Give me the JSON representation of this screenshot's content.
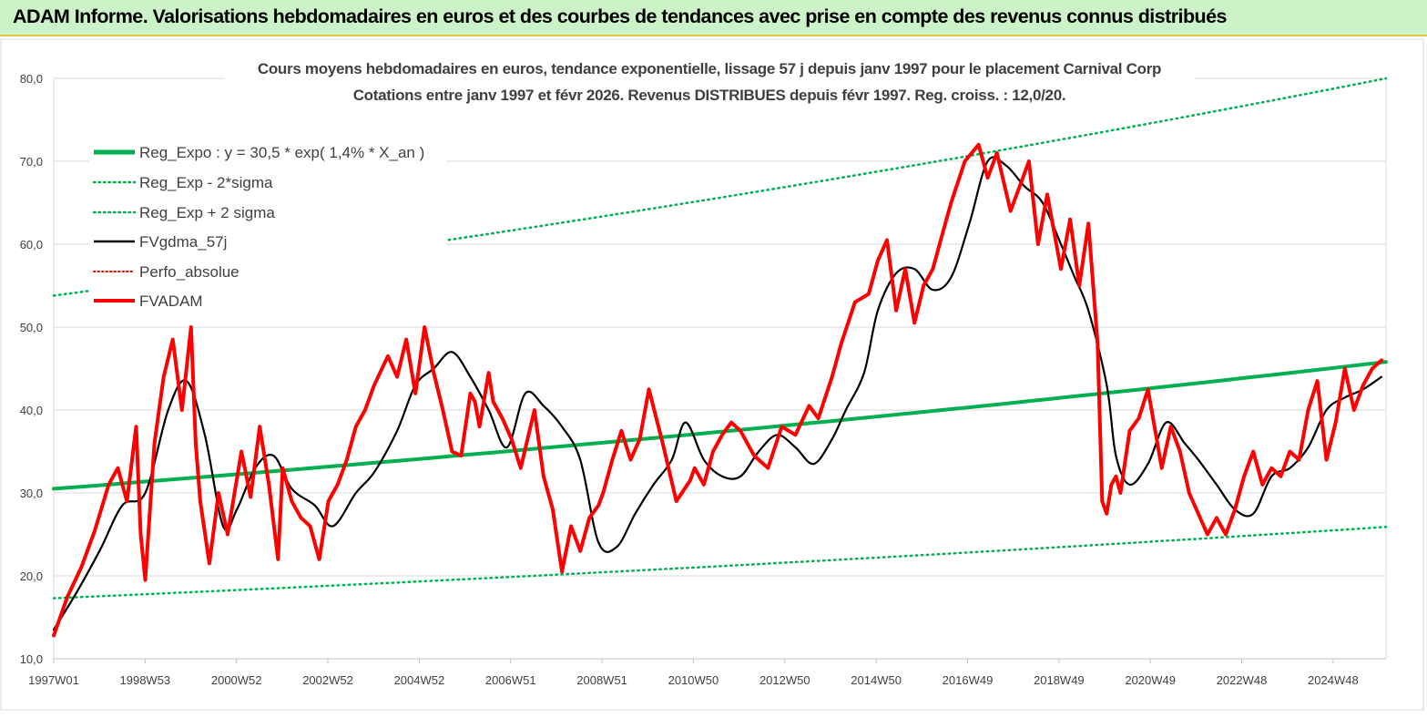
{
  "banner": {
    "title": "ADAM Informe. Valorisations hebdomadaires en euros et des courbes de tendances avec prise en compte des revenus connus distribués"
  },
  "colors": {
    "banner_bg": "#ccf2c8",
    "banner_border": "#e8c33a",
    "reg_expo": "#00b050",
    "fvgdma": "#000000",
    "fvadam": "#ff0000",
    "perfo": "#ff0000"
  },
  "chart_data": {
    "type": "line",
    "title": [
      "Cours moyens hebdomadaires en euros, tendance exponentielle, lissage 57 j depuis janv 1997 pour le placement Carnival Corp",
      "Cotations entre janv 1997 et févr 2026. Revenus DISTRIBUES depuis févr 1997. Reg. croiss. : 12,0/20."
    ],
    "xlabel": "",
    "ylabel": "",
    "ylim": [
      10,
      80
    ],
    "xlim": [
      1997.0,
      2026.1
    ],
    "yticks": [
      "10,0",
      "20,0",
      "30,0",
      "40,0",
      "50,0",
      "60,0",
      "70,0",
      "80,0"
    ],
    "xticks": [
      "1997W01",
      "1998W53",
      "2000W52",
      "2002W52",
      "2004W52",
      "2006W51",
      "2008W51",
      "2010W50",
      "2012W50",
      "2014W50",
      "2016W49",
      "2018W49",
      "2020W49",
      "2022W48",
      "2024W48"
    ],
    "grid": true,
    "legend_position": "top-left",
    "series": [
      {
        "name": "Reg_Expo : y = 30,5 * exp( 1,4% *  X_an )",
        "style": "solid-thick",
        "color": "#00b050",
        "x": [
          1997.0,
          2026.1
        ],
        "values": [
          30.5,
          45.8
        ]
      },
      {
        "name": "Reg_Exp - 2*sigma",
        "style": "dotted",
        "color": "#00b050",
        "x": [
          1997.0,
          2026.1
        ],
        "values": [
          17.3,
          25.9
        ]
      },
      {
        "name": "Reg_Exp + 2 sigma",
        "style": "dotted",
        "color": "#00b050",
        "x": [
          1997.0,
          2026.1
        ],
        "values": [
          53.8,
          80.0
        ]
      },
      {
        "name": "FVgdma_57j",
        "style": "solid",
        "color": "#000000",
        "x": [
          1997.0,
          1997.5,
          1998.0,
          1998.5,
          1999.0,
          1999.5,
          1999.9,
          2000.3,
          2000.7,
          2001.0,
          2001.4,
          2001.8,
          2002.2,
          2002.7,
          2003.1,
          2003.6,
          2004.0,
          2004.5,
          2004.9,
          2005.3,
          2005.7,
          2006.1,
          2006.5,
          2006.9,
          2007.3,
          2007.7,
          2008.1,
          2008.5,
          2008.9,
          2009.3,
          2009.7,
          2010.1,
          2010.5,
          2010.8,
          2011.2,
          2011.6,
          2012.0,
          2012.4,
          2012.8,
          2013.2,
          2013.6,
          2014.0,
          2014.3,
          2014.7,
          2015.0,
          2015.4,
          2015.8,
          2016.2,
          2016.6,
          2017.0,
          2017.4,
          2017.8,
          2018.2,
          2018.6,
          2019.0,
          2019.3,
          2019.6,
          2020.0,
          2020.2,
          2020.5,
          2020.9,
          2021.3,
          2021.7,
          2022.0,
          2022.4,
          2022.8,
          2023.2,
          2023.6,
          2024.0,
          2024.4,
          2024.8,
          2025.2,
          2025.6,
          2026.0
        ],
        "values": [
          13.5,
          18.0,
          23.0,
          28.5,
          30.0,
          40.0,
          43.5,
          37.0,
          26.0,
          28.0,
          33.0,
          34.5,
          30.5,
          28.5,
          26.0,
          30.0,
          32.5,
          37.5,
          43.0,
          45.0,
          47.0,
          44.0,
          40.0,
          35.5,
          42.0,
          40.5,
          38.0,
          34.0,
          24.0,
          23.5,
          27.5,
          31.0,
          34.0,
          38.5,
          34.0,
          32.0,
          32.0,
          35.0,
          37.0,
          35.5,
          33.5,
          36.5,
          40.0,
          44.5,
          52.0,
          56.5,
          57.0,
          54.5,
          56.0,
          62.5,
          70.0,
          69.5,
          67.0,
          65.0,
          60.0,
          56.0,
          52.0,
          43.0,
          34.5,
          31.0,
          33.5,
          38.5,
          36.0,
          34.0,
          31.0,
          28.0,
          27.5,
          32.0,
          33.0,
          35.5,
          40.0,
          41.5,
          42.5,
          44.0
        ]
      },
      {
        "name": "Perfo_absolue",
        "style": "dotted",
        "color": "#ff0000",
        "x": [],
        "values": []
      },
      {
        "name": "FVADAM",
        "style": "solid-thick",
        "color": "#ff0000",
        "x": [
          1997.0,
          1997.3,
          1997.6,
          1997.9,
          1998.2,
          1998.4,
          1998.6,
          1998.8,
          1998.9,
          1999.0,
          1999.2,
          1999.4,
          1999.6,
          1999.8,
          2000.0,
          2000.1,
          2000.2,
          2000.4,
          2000.6,
          2000.8,
          2001.1,
          2001.3,
          2001.5,
          2001.7,
          2001.9,
          2002.0,
          2002.2,
          2002.4,
          2002.6,
          2002.8,
          2003.0,
          2003.2,
          2003.4,
          2003.6,
          2003.8,
          2004.0,
          2004.3,
          2004.5,
          2004.7,
          2004.9,
          2005.1,
          2005.3,
          2005.5,
          2005.7,
          2005.9,
          2006.1,
          2006.2,
          2006.3,
          2006.5,
          2006.6,
          2006.8,
          2007.0,
          2007.2,
          2007.5,
          2007.7,
          2007.9,
          2008.1,
          2008.3,
          2008.5,
          2008.7,
          2008.9,
          2009.0,
          2009.2,
          2009.4,
          2009.6,
          2009.8,
          2010.0,
          2010.3,
          2010.6,
          2010.9,
          2011.0,
          2011.2,
          2011.4,
          2011.6,
          2011.8,
          2012.0,
          2012.3,
          2012.6,
          2012.9,
          2013.2,
          2013.5,
          2013.7,
          2014.0,
          2014.2,
          2014.5,
          2014.8,
          2015.0,
          2015.2,
          2015.4,
          2015.6,
          2015.8,
          2016.0,
          2016.2,
          2016.4,
          2016.6,
          2016.9,
          2017.2,
          2017.4,
          2017.6,
          2017.9,
          2018.1,
          2018.3,
          2018.5,
          2018.7,
          2019.0,
          2019.2,
          2019.4,
          2019.6,
          2019.8,
          2019.9,
          2020.0,
          2020.1,
          2020.2,
          2020.3,
          2020.5,
          2020.7,
          2020.9,
          2021.2,
          2021.4,
          2021.6,
          2021.8,
          2022.0,
          2022.2,
          2022.4,
          2022.6,
          2022.8,
          2023.0,
          2023.2,
          2023.4,
          2023.6,
          2023.8,
          2024.0,
          2024.2,
          2024.4,
          2024.6,
          2024.8,
          2025.0,
          2025.2,
          2025.4,
          2025.6,
          2025.8,
          2026.0
        ],
        "values": [
          12.8,
          17.5,
          21.0,
          25.5,
          31.0,
          33.0,
          29.0,
          38.0,
          25.0,
          19.5,
          36.0,
          44.0,
          48.5,
          40.0,
          50.0,
          36.0,
          29.0,
          21.5,
          30.0,
          25.0,
          35.0,
          29.5,
          38.0,
          31.0,
          22.0,
          33.0,
          29.0,
          27.0,
          26.0,
          22.0,
          29.0,
          31.0,
          34.0,
          38.0,
          40.0,
          43.0,
          46.5,
          44.0,
          48.5,
          42.0,
          50.0,
          44.5,
          40.0,
          35.0,
          34.5,
          42.0,
          41.0,
          38.0,
          44.5,
          41.0,
          39.0,
          36.5,
          33.0,
          40.0,
          32.0,
          28.0,
          20.5,
          26.0,
          23.0,
          27.0,
          28.5,
          30.0,
          34.0,
          37.5,
          34.0,
          36.5,
          42.5,
          36.0,
          29.0,
          31.5,
          33.0,
          31.0,
          35.0,
          37.0,
          38.5,
          37.5,
          34.5,
          33.0,
          38.0,
          37.0,
          40.5,
          39.0,
          44.0,
          48.0,
          53.0,
          54.0,
          58.0,
          60.5,
          52.0,
          57.0,
          50.5,
          55.0,
          57.0,
          61.0,
          65.0,
          70.0,
          72.0,
          68.0,
          71.0,
          64.0,
          67.0,
          70.0,
          60.0,
          66.0,
          57.0,
          63.0,
          55.0,
          62.5,
          48.0,
          29.0,
          27.5,
          31.0,
          32.0,
          30.0,
          37.5,
          39.0,
          42.5,
          33.0,
          38.0,
          35.0,
          30.0,
          27.5,
          25.0,
          27.0,
          25.0,
          28.0,
          32.0,
          35.0,
          31.0,
          33.0,
          32.0,
          35.0,
          34.0,
          40.0,
          43.5,
          34.0,
          38.5,
          45.0,
          40.0,
          43.0,
          45.0,
          46.0
        ]
      }
    ]
  }
}
